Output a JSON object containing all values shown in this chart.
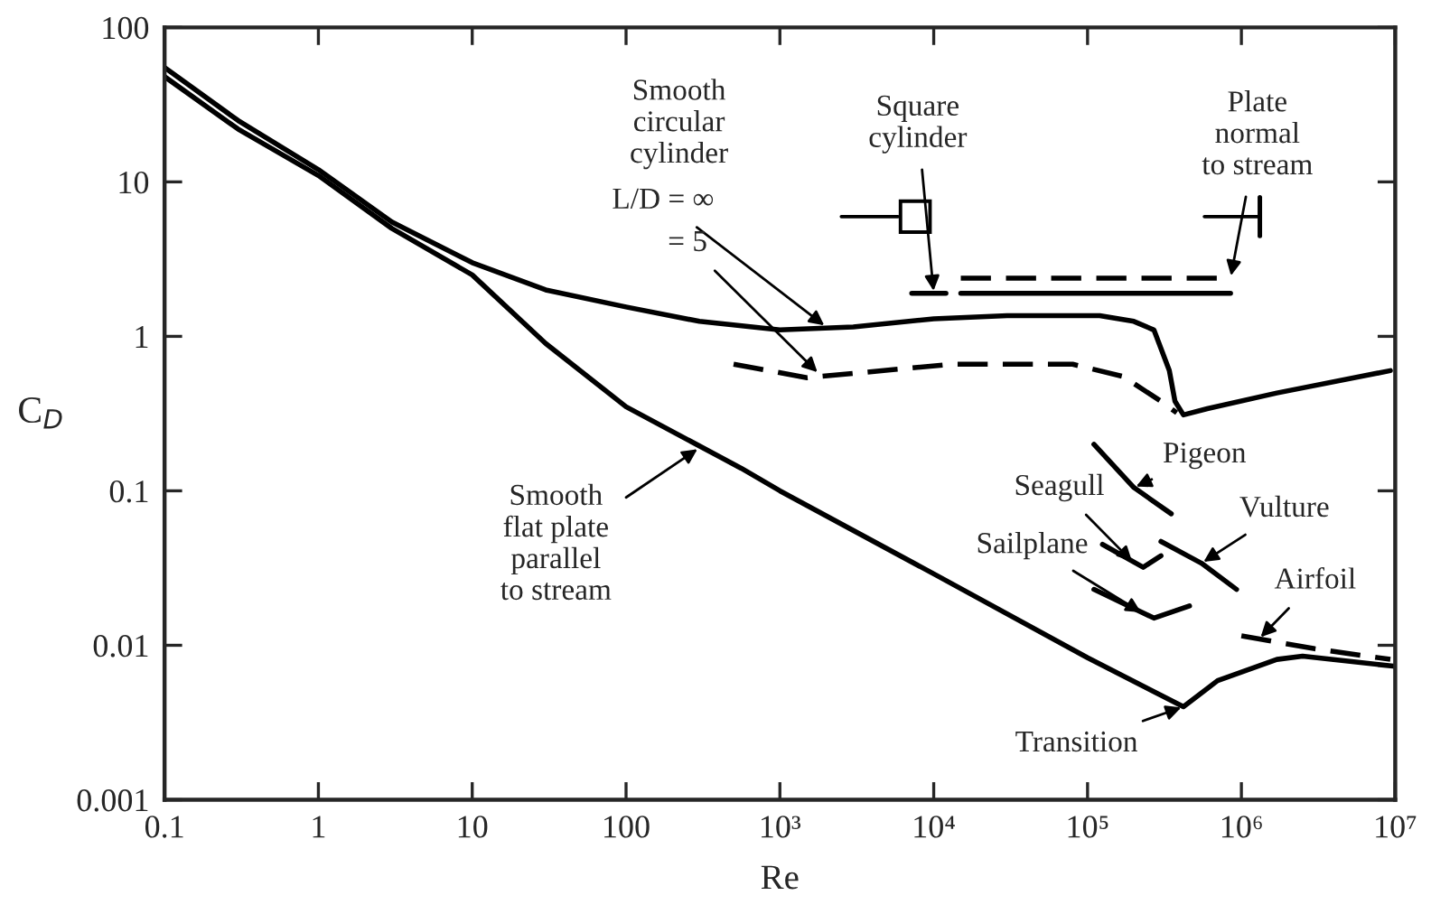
{
  "chart_data": {
    "type": "line",
    "xlabel": "Re",
    "ylabel": "C$_{D}$",
    "log": "xy",
    "grid": false,
    "marker": "none",
    "xlim": [
      0.1,
      10000000
    ],
    "ylim": [
      0.001,
      100
    ],
    "xticks": [
      0.1,
      1,
      10,
      100,
      {
        "value": 1000,
        "label": "10³"
      },
      {
        "value": 10000,
        "label": "10⁴"
      },
      {
        "value": 100000,
        "label": "10⁵"
      },
      {
        "value": 1000000,
        "label": "10⁶"
      },
      {
        "value": 10000000,
        "label": "10⁷"
      }
    ],
    "yticks": [
      0.001,
      0.01,
      0.1,
      1,
      10,
      100
    ],
    "series": [
      {
        "color": "#000000",
        "line_style": "solid",
        "x": [
          0.1,
          0.3,
          1,
          3,
          10,
          30,
          100,
          300,
          1000,
          3000,
          10000,
          30000,
          120000,
          200000,
          270000,
          340000,
          370000,
          420000,
          600000,
          1700000,
          9300000
        ],
        "values": [
          55,
          25,
          12,
          5.5,
          3.0,
          2.0,
          1.55,
          1.25,
          1.1,
          1.15,
          1.3,
          1.36,
          1.36,
          1.25,
          1.1,
          0.6,
          0.38,
          0.31,
          0.34,
          0.43,
          0.6
        ]
      },
      {
        "color": "#000000",
        "line_style": "dashed",
        "x": [
          500,
          1500,
          13000,
          80000,
          170000,
          300000,
          380000
        ],
        "values": [
          0.66,
          0.54,
          0.66,
          0.66,
          0.55,
          0.38,
          0.32
        ]
      },
      {
        "color": "#000000",
        "line_style": "solid",
        "x": [
          0.1,
          0.3,
          1,
          3,
          10,
          30,
          100,
          560,
          1000,
          10000,
          100000,
          420000,
          700000,
          1700000,
          2500000,
          10000000
        ],
        "values": [
          48,
          22,
          11,
          5,
          2.5,
          0.9,
          0.35,
          0.14,
          0.1,
          0.029,
          0.0083,
          0.004,
          0.0059,
          0.0081,
          0.0085,
          0.0073
        ]
      },
      {
        "color": "#000000",
        "line_style": "solid",
        "x": [
          7200,
          12000
        ],
        "values": [
          1.9,
          1.9
        ]
      },
      {
        "color": "#000000",
        "line_style": "solid",
        "x": [
          15000,
          850000
        ],
        "values": [
          1.9,
          1.9
        ]
      },
      {
        "color": "#000000",
        "line_style": "dashed",
        "x": [
          15000,
          850000
        ],
        "values": [
          2.38,
          2.38
        ]
      },
      {
        "color": "#000000",
        "line_style": "solid",
        "x": [
          110000,
          200000,
          350000
        ],
        "values": [
          0.2,
          0.105,
          0.071
        ]
      },
      {
        "color": "#000000",
        "line_style": "solid",
        "x": [
          125000,
          230000,
          300000
        ],
        "values": [
          0.045,
          0.032,
          0.038
        ]
      },
      {
        "color": "#000000",
        "line_style": "solid",
        "x": [
          300000,
          550000,
          930000
        ],
        "values": [
          0.047,
          0.034,
          0.023
        ]
      },
      {
        "color": "#000000",
        "line_style": "solid",
        "x": [
          110000,
          270000,
          460000
        ],
        "values": [
          0.023,
          0.015,
          0.018
        ]
      },
      {
        "color": "#000000",
        "line_style": "dashed",
        "x": [
          1000000,
          3000000,
          9300000
        ],
        "values": [
          0.0115,
          0.0095,
          0.0081
        ]
      }
    ],
    "annotations": [
      "Smooth\ncircular\ncylinder",
      {
        "text": "L/D = ∞",
        "x": 2000,
        "y": 1.15
      },
      {
        "text": "= 5",
        "x": 1800,
        "y": 0.57
      },
      {
        "text": "Square\ncylinder",
        "x": 10000,
        "y": 1.9
      },
      {
        "text": "Plate\nnormal\nto stream",
        "x": 850000,
        "y": 2.38
      },
      {
        "text": "Smooth\nflat plate\nparallel\nto stream",
        "x": 300,
        "y": 0.19
      },
      {
        "text": "Pigeon",
        "x": 200000,
        "y": 0.105
      },
      {
        "text": "Seagull",
        "x": 200000,
        "y": 0.034
      },
      {
        "text": "Vulture",
        "x": 550000,
        "y": 0.034
      },
      {
        "text": "Sailplane",
        "x": 230000,
        "y": 0.016
      },
      {
        "text": "Airfoil",
        "x": 1300000,
        "y": 0.011
      },
      {
        "text": "Transition",
        "x": 420000,
        "y": 0.004
      }
    ]
  }
}
